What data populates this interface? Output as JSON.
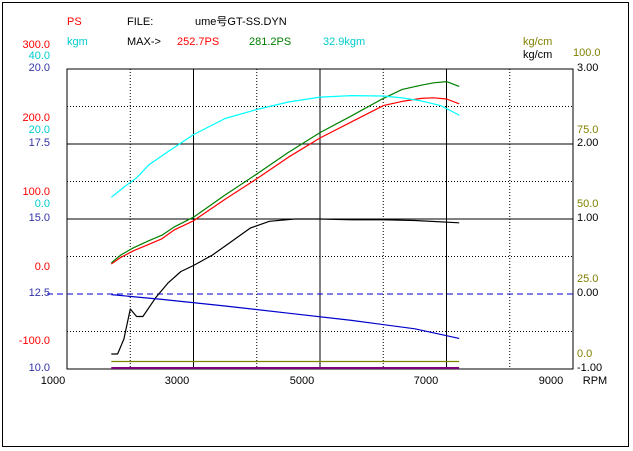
{
  "header": {
    "ps_label": "PS",
    "kgm_label": "kgm",
    "file_label": "FILE:",
    "file_name": "ume号GT-SS.DYN",
    "max_label": "MAX->",
    "max_ps_red": "252.7PS",
    "max_ps_green": "281.2PS",
    "max_kgm": "32.9kgm",
    "right_unit_top": "kg/cm",
    "right_unit_top2": "kg/cm",
    "right_top_value": "100.0"
  },
  "axes": {
    "x_unit": "RPM",
    "x_ticks": [
      "1000",
      "3000",
      "5000",
      "7000",
      "9000"
    ],
    "left_ps_ticks": [
      "300.0",
      "200.0",
      "100.0",
      "0.0",
      "-100.0"
    ],
    "left_kgm_ticks": [
      "40.0",
      "20.0",
      "0.0"
    ],
    "left_blue_ticks": [
      "20.0",
      "17.5",
      "15.0",
      "12.5",
      "10.0"
    ],
    "right_black_ticks": [
      "3.00",
      "2.00",
      "1.00",
      "0.00",
      "-1.00"
    ],
    "right_olive_ticks": [
      "75.0",
      "50.0",
      "25.0",
      "0.0"
    ]
  },
  "colors": {
    "ps_red": "#ff0000",
    "kgm_cyan": "#00ffff",
    "green": "#008000",
    "blue_axis": "#0000cc",
    "olive": "#808000",
    "black": "#000000",
    "purple": "#800080"
  },
  "chart_data": {
    "type": "line",
    "x_axis": {
      "label": "RPM",
      "range": [
        1000,
        9000
      ]
    },
    "y_axes": {
      "ps": [
        -200,
        300
      ],
      "kgm": [
        -40,
        40
      ],
      "blue_scale": [
        10,
        20
      ],
      "boost_kg_cm": [
        -1,
        3
      ],
      "olive_scale": [
        0,
        100
      ]
    },
    "grid": true,
    "series": [
      {
        "name": "252.7PS",
        "color": "#ff0000",
        "axis": "ps",
        "x": [
          1700,
          1850,
          2050,
          2300,
          2500,
          2700,
          3000,
          3500,
          4000,
          4500,
          5000,
          5500,
          6000,
          6300,
          6600,
          6800,
          7000,
          7200
        ],
        "y": [
          -25,
          -14,
          -3,
          8,
          17,
          32,
          47,
          83,
          117,
          153,
          185,
          212,
          239,
          246,
          251,
          252,
          250,
          242
        ]
      },
      {
        "name": "281.2PS",
        "color": "#008000",
        "axis": "ps",
        "x": [
          1700,
          1850,
          2050,
          2300,
          2500,
          2700,
          3000,
          3500,
          4000,
          4500,
          5000,
          5500,
          6000,
          6300,
          6600,
          6800,
          7000,
          7200
        ],
        "y": [
          -23,
          -10,
          2,
          14,
          23,
          37,
          53,
          90,
          125,
          161,
          194,
          222,
          251,
          266,
          273,
          277,
          279,
          271
        ]
      },
      {
        "name": "32.9kgm",
        "color": "#00ffff",
        "axis": "kgm",
        "x": [
          1700,
          1900,
          2100,
          2300,
          2600,
          3000,
          3500,
          4000,
          4500,
          5000,
          5500,
          6000,
          6300,
          6600,
          6900,
          7200
        ],
        "y": [
          5.8,
          8.5,
          11.0,
          14.5,
          18.0,
          22.5,
          26.8,
          29.2,
          31.2,
          32.5,
          32.9,
          32.8,
          32.3,
          31.5,
          30.3,
          27.7
        ]
      },
      {
        "color": "#000000",
        "axis": "boost_kg_cm",
        "x": [
          1700,
          1800,
          1900,
          2000,
          2100,
          2200,
          2400,
          2600,
          2800,
          3000,
          3300,
          3600,
          3900,
          4200,
          4600,
          5000,
          5500,
          6000,
          6500,
          7200
        ],
        "y": [
          -0.8,
          -0.8,
          -0.6,
          -0.2,
          -0.3,
          -0.3,
          -0.05,
          0.15,
          0.3,
          0.38,
          0.52,
          0.7,
          0.88,
          0.97,
          1.0,
          1.0,
          0.99,
          0.99,
          0.98,
          0.95
        ]
      },
      {
        "color": "#0000cc",
        "axis": "blue_scale",
        "x": [
          1700,
          2500,
          3500,
          4500,
          5500,
          6500,
          7200
        ],
        "y": [
          12.48,
          12.32,
          12.1,
          11.86,
          11.62,
          11.34,
          11.02
        ]
      },
      {
        "color": "#808000",
        "axis": "olive_scale",
        "x": [
          1700,
          7200
        ],
        "y": [
          2.5,
          2.5
        ]
      }
    ],
    "reference_lines": [
      {
        "axis": "boost_kg_cm",
        "value": 0.0,
        "style": "dashed",
        "color": "#0000cc"
      }
    ]
  }
}
